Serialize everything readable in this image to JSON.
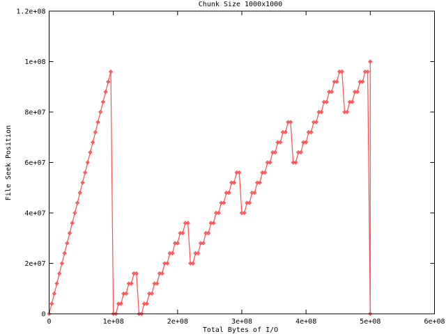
{
  "chart_data": {
    "type": "line",
    "title": "Chunk Size 1000x1000",
    "xlabel": "Total Bytes of I/O",
    "ylabel": "File Seek Position",
    "xlim": [
      0,
      600000000.0
    ],
    "ylim": [
      0,
      120000000.0
    ],
    "grid": false,
    "legend": "none",
    "line_color": "#ff4d4d",
    "marker": "diamond",
    "x_ticks": [
      {
        "value": 0,
        "label": "0"
      },
      {
        "value": 100000000.0,
        "label": "1e+08"
      },
      {
        "value": 200000000.0,
        "label": "2e+08"
      },
      {
        "value": 300000000.0,
        "label": "3e+08"
      },
      {
        "value": 400000000.0,
        "label": "4e+08"
      },
      {
        "value": 500000000.0,
        "label": "5e+08"
      },
      {
        "value": 600000000.0,
        "label": "6e+08"
      }
    ],
    "y_ticks": [
      {
        "value": 0,
        "label": "0"
      },
      {
        "value": 20000000.0,
        "label": "2e+07"
      },
      {
        "value": 40000000.0,
        "label": "4e+07"
      },
      {
        "value": 60000000.0,
        "label": "6e+07"
      },
      {
        "value": 80000000.0,
        "label": "8e+07"
      },
      {
        "value": 100000000.0,
        "label": "1e+08"
      },
      {
        "value": 120000000.0,
        "label": "1.2e+08"
      }
    ],
    "points": [
      [
        0,
        0
      ],
      [
        4000000.0,
        4000000.0
      ],
      [
        8000000.0,
        8000000.0
      ],
      [
        12000000.0,
        12000000.0
      ],
      [
        16000000.0,
        16000000.0
      ],
      [
        20000000.0,
        20000000.0
      ],
      [
        24000000.0,
        24000000.0
      ],
      [
        28000000.0,
        28000000.0
      ],
      [
        32000000.0,
        32000000.0
      ],
      [
        36000000.0,
        36000000.0
      ],
      [
        40000000.0,
        40000000.0
      ],
      [
        44000000.0,
        44000000.0
      ],
      [
        48000000.0,
        48000000.0
      ],
      [
        52000000.0,
        52000000.0
      ],
      [
        56000000.0,
        56000000.0
      ],
      [
        60000000.0,
        60000000.0
      ],
      [
        64000000.0,
        64000000.0
      ],
      [
        68000000.0,
        68000000.0
      ],
      [
        72000000.0,
        72000000.0
      ],
      [
        76000000.0,
        76000000.0
      ],
      [
        80000000.0,
        80000000.0
      ],
      [
        84000000.0,
        84000000.0
      ],
      [
        88000000.0,
        88000000.0
      ],
      [
        92000000.0,
        92000000.0
      ],
      [
        96000000.0,
        96000000.0
      ],
      [
        100000000.0,
        0
      ],
      [
        104000000.0,
        0
      ],
      [
        108000000.0,
        4000000.0
      ],
      [
        112000000.0,
        4000000.0
      ],
      [
        116000000.0,
        8000000.0
      ],
      [
        120000000.0,
        8000000.0
      ],
      [
        124000000.0,
        12000000.0
      ],
      [
        128000000.0,
        12000000.0
      ],
      [
        132000000.0,
        16000000.0
      ],
      [
        136000000.0,
        16000000.0
      ],
      [
        140000000.0,
        0
      ],
      [
        144000000.0,
        0
      ],
      [
        148000000.0,
        4000000.0
      ],
      [
        152000000.0,
        4000000.0
      ],
      [
        156000000.0,
        8000000.0
      ],
      [
        160000000.0,
        8000000.0
      ],
      [
        164000000.0,
        12000000.0
      ],
      [
        168000000.0,
        12000000.0
      ],
      [
        172000000.0,
        16000000.0
      ],
      [
        176000000.0,
        16000000.0
      ],
      [
        180000000.0,
        20000000.0
      ],
      [
        184000000.0,
        20000000.0
      ],
      [
        188000000.0,
        24000000.0
      ],
      [
        192000000.0,
        24000000.0
      ],
      [
        196000000.0,
        28000000.0
      ],
      [
        200000000.0,
        28000000.0
      ],
      [
        204000000.0,
        32000000.0
      ],
      [
        208000000.0,
        32000000.0
      ],
      [
        212000000.0,
        36000000.0
      ],
      [
        216000000.0,
        36000000.0
      ],
      [
        220000000.0,
        20000000.0
      ],
      [
        224000000.0,
        20000000.0
      ],
      [
        228000000.0,
        24000000.0
      ],
      [
        232000000.0,
        24000000.0
      ],
      [
        236000000.0,
        28000000.0
      ],
      [
        240000000.0,
        28000000.0
      ],
      [
        244000000.0,
        32000000.0
      ],
      [
        248000000.0,
        32000000.0
      ],
      [
        252000000.0,
        36000000.0
      ],
      [
        256000000.0,
        36000000.0
      ],
      [
        260000000.0,
        40000000.0
      ],
      [
        264000000.0,
        40000000.0
      ],
      [
        268000000.0,
        44000000.0
      ],
      [
        272000000.0,
        44000000.0
      ],
      [
        276000000.0,
        48000000.0
      ],
      [
        280000000.0,
        48000000.0
      ],
      [
        284000000.0,
        52000000.0
      ],
      [
        288000000.0,
        52000000.0
      ],
      [
        292000000.0,
        56000000.0
      ],
      [
        296000000.0,
        56000000.0
      ],
      [
        300000000.0,
        40000000.0
      ],
      [
        304000000.0,
        40000000.0
      ],
      [
        308000000.0,
        44000000.0
      ],
      [
        312000000.0,
        44000000.0
      ],
      [
        316000000.0,
        48000000.0
      ],
      [
        320000000.0,
        48000000.0
      ],
      [
        324000000.0,
        52000000.0
      ],
      [
        328000000.0,
        52000000.0
      ],
      [
        332000000.0,
        56000000.0
      ],
      [
        336000000.0,
        56000000.0
      ],
      [
        340000000.0,
        60000000.0
      ],
      [
        344000000.0,
        60000000.0
      ],
      [
        348000000.0,
        64000000.0
      ],
      [
        352000000.0,
        64000000.0
      ],
      [
        356000000.0,
        68000000.0
      ],
      [
        360000000.0,
        68000000.0
      ],
      [
        364000000.0,
        72000000.0
      ],
      [
        368000000.0,
        72000000.0
      ],
      [
        372000000.0,
        76000000.0
      ],
      [
        376000000.0,
        76000000.0
      ],
      [
        380000000.0,
        60000000.0
      ],
      [
        384000000.0,
        60000000.0
      ],
      [
        388000000.0,
        64000000.0
      ],
      [
        392000000.0,
        64000000.0
      ],
      [
        396000000.0,
        68000000.0
      ],
      [
        400000000.0,
        68000000.0
      ],
      [
        404000000.0,
        72000000.0
      ],
      [
        408000000.0,
        72000000.0
      ],
      [
        412000000.0,
        76000000.0
      ],
      [
        416000000.0,
        76000000.0
      ],
      [
        420000000.0,
        80000000.0
      ],
      [
        424000000.0,
        80000000.0
      ],
      [
        428000000.0,
        84000000.0
      ],
      [
        432000000.0,
        84000000.0
      ],
      [
        436000000.0,
        88000000.0
      ],
      [
        440000000.0,
        88000000.0
      ],
      [
        444000000.0,
        92000000.0
      ],
      [
        448000000.0,
        92000000.0
      ],
      [
        452000000.0,
        96000000.0
      ],
      [
        456000000.0,
        96000000.0
      ],
      [
        460000000.0,
        80000000.0
      ],
      [
        464000000.0,
        80000000.0
      ],
      [
        468000000.0,
        84000000.0
      ],
      [
        472000000.0,
        84000000.0
      ],
      [
        476000000.0,
        88000000.0
      ],
      [
        480000000.0,
        88000000.0
      ],
      [
        484000000.0,
        92000000.0
      ],
      [
        488000000.0,
        92000000.0
      ],
      [
        492000000.0,
        96000000.0
      ],
      [
        496000000.0,
        96000000.0
      ],
      [
        500000000.0,
        0
      ],
      [
        500000000.0,
        100000000.0
      ]
    ]
  }
}
